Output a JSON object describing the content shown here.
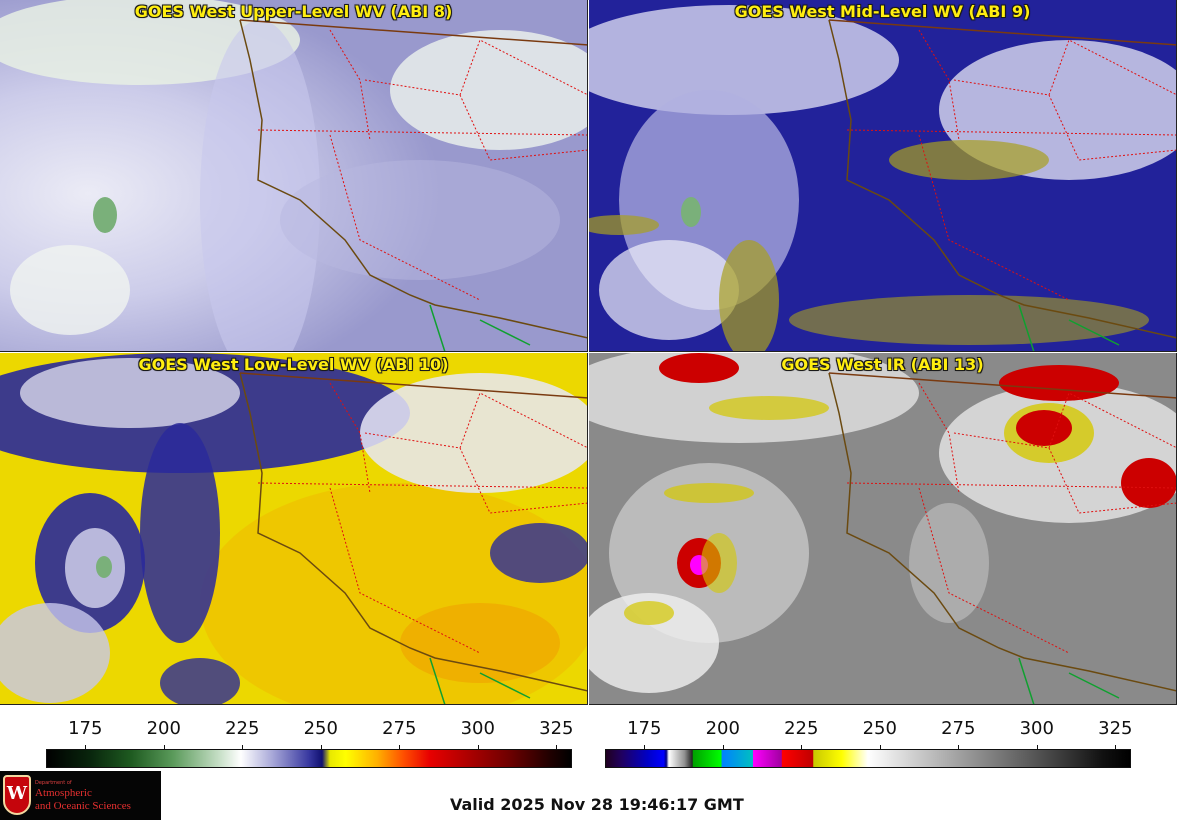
{
  "panels": {
    "upper": {
      "title": "GOES West Upper-Level WV (ABI 8)"
    },
    "mid": {
      "title": "GOES West Mid-Level WV (ABI 9)"
    },
    "low": {
      "title": "GOES West Low-Level WV (ABI 10)"
    },
    "ir": {
      "title": "GOES West IR (ABI 13)"
    }
  },
  "colorbars": {
    "wv": {
      "min": 162.5,
      "max": 330.0,
      "ticks": [
        175,
        200,
        225,
        250,
        275,
        300,
        325
      ]
    },
    "ir": {
      "min": 162.5,
      "max": 330.0,
      "ticks": [
        175,
        200,
        225,
        250,
        275,
        300,
        325
      ]
    }
  },
  "logo": {
    "dept": "Department of",
    "line1": "Atmospheric",
    "line2": "and Oceanic Sciences",
    "crest": "W"
  },
  "valid_text": "Valid 2025 Nov 28 19:46:17 GMT"
}
